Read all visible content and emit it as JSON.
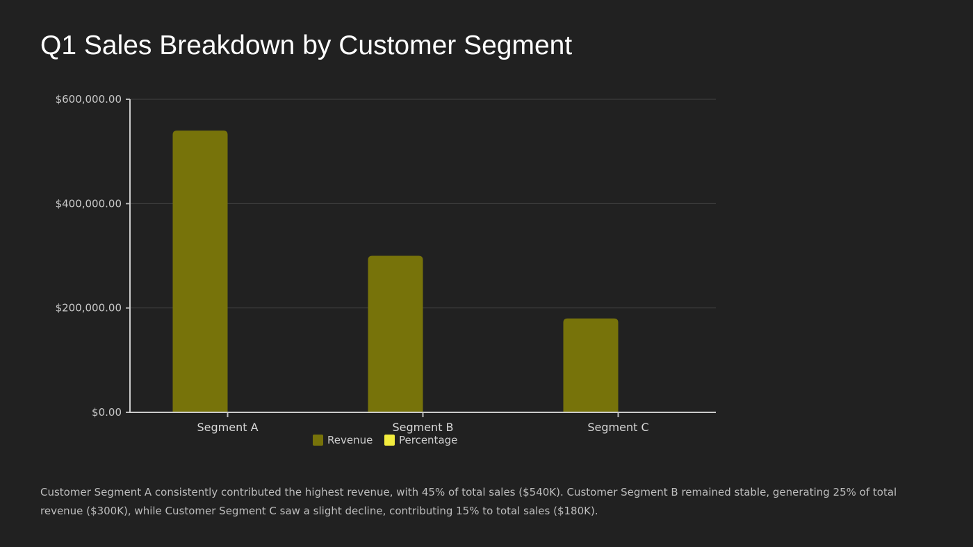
{
  "title": "Q1 Sales Breakdown by Customer Segment",
  "caption": "Customer Segment A consistently contributed the highest revenue, with 45% of total sales ($540K). Customer Segment B remained stable, generating 25% of total revenue ($300K), while Customer Segment C saw a slight decline, contributing 15% to total sales ($180K).",
  "chart_data": {
    "type": "bar",
    "categories": [
      "Segment A",
      "Segment B",
      "Segment C"
    ],
    "series": [
      {
        "name": "Revenue",
        "values": [
          540000,
          300000,
          180000
        ],
        "color": "#77730a"
      },
      {
        "name": "Percentage",
        "values": [
          45,
          25,
          15
        ],
        "color": "#f2ec3e"
      }
    ],
    "ylim": [
      0,
      600000
    ],
    "yticks": [
      0,
      200000,
      400000,
      600000
    ],
    "ytick_labels": [
      "$0.00",
      "$200,000.00",
      "$400,000.00",
      "$600,000.00"
    ],
    "grid": true,
    "legend_position": "bottom-center",
    "background": "#212121"
  }
}
